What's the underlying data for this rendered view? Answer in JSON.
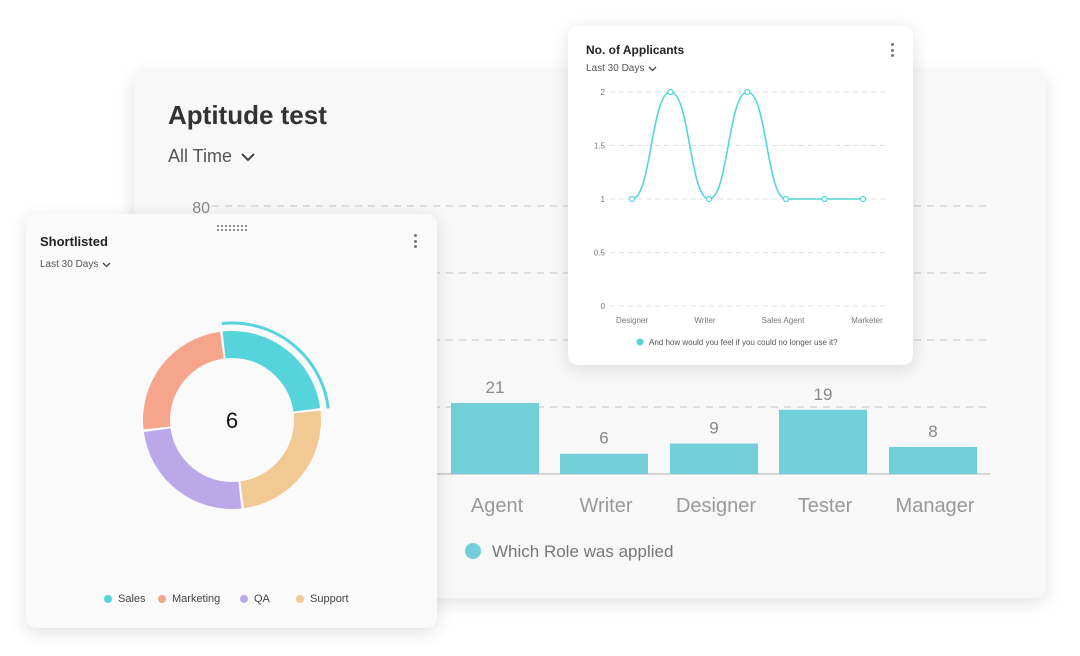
{
  "main": {
    "title": "Aptitude test",
    "range": "All Time"
  },
  "applicants": {
    "title": "No. of Applicants",
    "range": "Last 30 Days"
  },
  "shortlisted": {
    "title": "Shortlisted",
    "range": "Last 30 Days",
    "center_value": "6"
  },
  "colors": {
    "teal": "#55d4dc",
    "bar": "#73cfd7",
    "salmon": "#f7a48d",
    "purple": "#bba8e8",
    "orange": "#f2c893"
  },
  "chart_data": [
    {
      "type": "bar",
      "categories": [
        "Agent",
        "Writer",
        "Designer",
        "Tester",
        "Manager"
      ],
      "series": [
        {
          "name": "Which Role was applied",
          "values": [
            21,
            6,
            9,
            19,
            8
          ]
        }
      ],
      "ytick_visible": "80",
      "grid": true
    },
    {
      "type": "line",
      "x": [
        "Designer",
        "",
        "Writer",
        "",
        "Sales Agent",
        "",
        "Marketer"
      ],
      "xticks": [
        "Designer",
        "Writer",
        "Sales Agent",
        "Marketer"
      ],
      "series": [
        {
          "name": "And how would you feel if you could no longer use it?",
          "values": [
            1,
            2,
            1,
            2,
            1,
            1,
            1
          ]
        }
      ],
      "yticks": [
        "0",
        "0.5",
        "1",
        "1.5",
        "2"
      ],
      "ylim": [
        0,
        2
      ],
      "grid": true
    },
    {
      "type": "pie",
      "labels": [
        "Sales",
        "Marketing",
        "QA",
        "Support"
      ],
      "values": [
        1.5,
        1.5,
        1.5,
        1.5
      ],
      "center_label": "6"
    }
  ]
}
